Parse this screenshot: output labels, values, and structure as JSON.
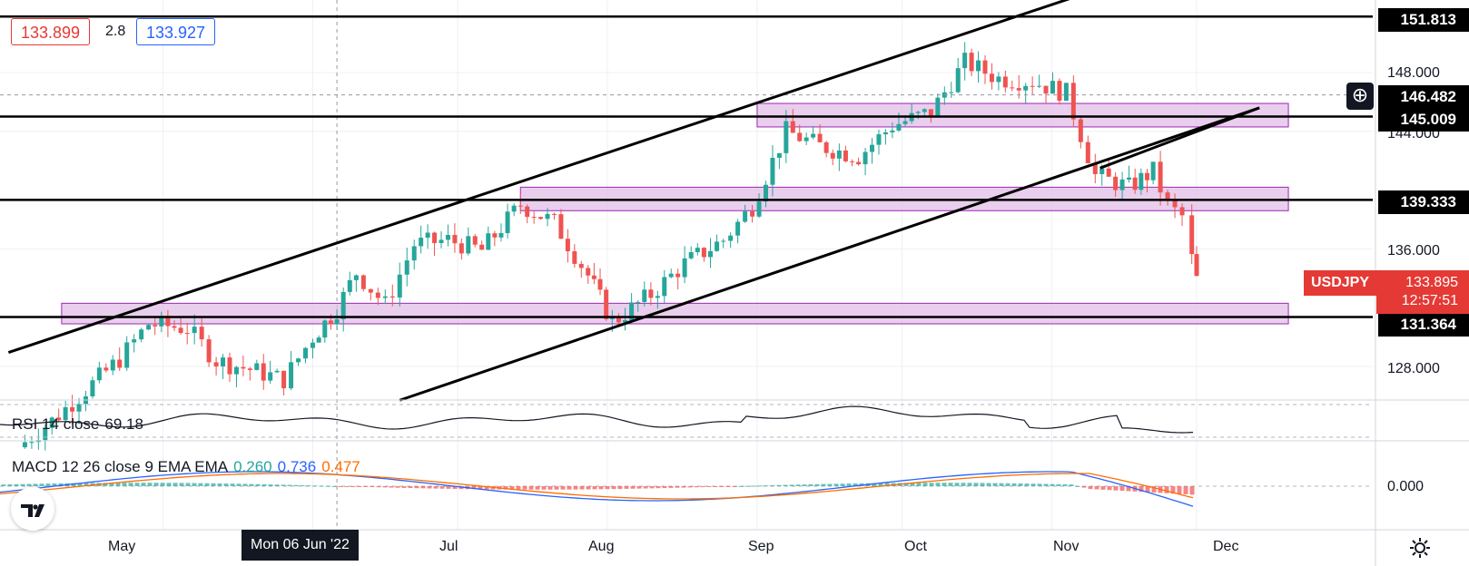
{
  "header": {
    "bid": "133.899",
    "spread": "2.8",
    "ask": "133.927"
  },
  "symbol": "USDJPY",
  "last_price": "133.895",
  "countdown": "12:57:51",
  "price_axis": {
    "ticks": [
      "148.000",
      "144.000",
      "136.000",
      "128.000"
    ],
    "macd_zero": "0.000"
  },
  "level_tags": [
    "151.813",
    "146.482",
    "145.009",
    "139.333",
    "131.364"
  ],
  "time_axis": {
    "labels": [
      "May",
      "Jul",
      "Aug",
      "Sep",
      "Oct",
      "Nov",
      "Dec"
    ],
    "crosshair": "Mon 06 Jun '22"
  },
  "rsi": {
    "name": "RSI 14 close",
    "value": "69.18"
  },
  "macd": {
    "name": "MACD 12 26 close 9 EMA EMA",
    "hist": "0.260",
    "macd": "0.736",
    "signal": "0.477"
  },
  "colors": {
    "up": "#26a69a",
    "down": "#ef5350",
    "zone": "#e1bee7",
    "macd_line": "#2962ff",
    "signal_line": "#ff6d00"
  },
  "icons": [
    "crosshair-plus-icon",
    "settings-gear-icon",
    "tradingview-logo-icon"
  ],
  "chart_data": {
    "type": "candlestick",
    "price_range": [
      125.5,
      153.2
    ],
    "y_ticks": [
      128,
      136,
      144,
      148
    ],
    "horizontal_levels": [
      151.813,
      145.009,
      139.333,
      131.364
    ],
    "dashed_level": 146.482,
    "zones": [
      {
        "from_date": "2022-09-01",
        "to_date": "2022-12-20",
        "low": 144.3,
        "high": 145.9
      },
      {
        "from_date": "2022-07-14",
        "to_date": "2022-12-20",
        "low": 138.6,
        "high": 140.2
      },
      {
        "from_date": "2022-04-10",
        "to_date": "2022-12-20",
        "low": 130.9,
        "high": 132.3
      }
    ],
    "channel_lines": [
      {
        "start_date": "2022-03-30",
        "start": 128.95,
        "end_date": "2022-11-30",
        "end": 155.8
      },
      {
        "start_date": "2022-06-19",
        "start": 125.7,
        "end_date": "2022-12-14",
        "end": 145.6
      },
      {
        "start_date": "2022-11-11",
        "start": 141.5,
        "end_date": "2022-12-14",
        "end": 145.6
      }
    ],
    "candles_close": [
      [
        "2022-04-01",
        122.5
      ],
      [
        "2022-04-08",
        124.3
      ],
      [
        "2022-04-15",
        126.4
      ],
      [
        "2022-04-22",
        128.5
      ],
      [
        "2022-04-28",
        130.9
      ],
      [
        "2022-05-06",
        130.6
      ],
      [
        "2022-05-12",
        128.4
      ],
      [
        "2022-05-19",
        127.8
      ],
      [
        "2022-05-26",
        127.1
      ],
      [
        "2022-06-01",
        130.0
      ],
      [
        "2022-06-06",
        131.9
      ],
      [
        "2022-06-10",
        134.4
      ],
      [
        "2022-06-16",
        132.2
      ],
      [
        "2022-06-22",
        136.3
      ],
      [
        "2022-06-29",
        136.6
      ],
      [
        "2022-07-06",
        135.9
      ],
      [
        "2022-07-14",
        139.0
      ],
      [
        "2022-07-21",
        137.8
      ],
      [
        "2022-07-28",
        134.2
      ],
      [
        "2022-08-02",
        131.0
      ],
      [
        "2022-08-10",
        132.9
      ],
      [
        "2022-08-17",
        135.0
      ],
      [
        "2022-08-25",
        136.6
      ],
      [
        "2022-08-31",
        138.9
      ],
      [
        "2022-09-07",
        144.0
      ],
      [
        "2022-09-14",
        143.0
      ],
      [
        "2022-09-22",
        142.3
      ],
      [
        "2022-09-29",
        144.4
      ],
      [
        "2022-10-07",
        145.3
      ],
      [
        "2022-10-14",
        148.7
      ],
      [
        "2022-10-21",
        147.6
      ],
      [
        "2022-10-28",
        147.4
      ],
      [
        "2022-11-04",
        146.6
      ],
      [
        "2022-11-10",
        141.0
      ],
      [
        "2022-11-17",
        140.2
      ],
      [
        "2022-11-22",
        141.3
      ],
      [
        "2022-11-25",
        138.9
      ],
      [
        "2022-11-28",
        138.2
      ],
      [
        "2022-11-30",
        135.3
      ],
      [
        "2022-12-01",
        133.9
      ]
    ],
    "rsi_value": 69.18,
    "macd_values": {
      "histogram": 0.26,
      "macd": 0.736,
      "signal": 0.477
    }
  }
}
